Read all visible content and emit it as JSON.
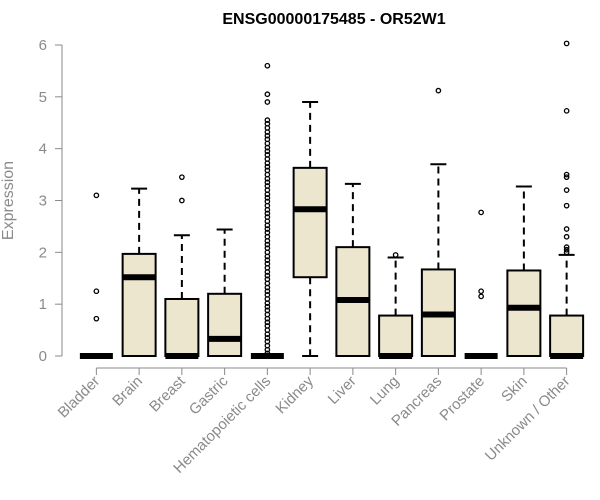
{
  "chart_data": {
    "type": "boxplot",
    "title": "ENSG00000175485 - OR52W1",
    "ylabel": "Expression",
    "xlabel": "",
    "ylim": [
      0,
      6
    ],
    "yticks": [
      "0",
      "1",
      "2",
      "3",
      "4",
      "5",
      "6"
    ],
    "box_fill": "#ede6cf",
    "categories": [
      "Bladder",
      "Brain",
      "Breast",
      "Gastric",
      "Hematopoietic cells",
      "Kidney",
      "Liver",
      "Lung",
      "Pancreas",
      "Prostate",
      "Skin",
      "Unknown / Other"
    ],
    "boxes": [
      {
        "q1": 0,
        "median": 0,
        "q3": 0,
        "wlo": 0,
        "whi": 0,
        "outliers": [
          0.72,
          1.25,
          3.1
        ]
      },
      {
        "q1": 0,
        "median": 1.52,
        "q3": 1.97,
        "wlo": 0,
        "whi": 3.23,
        "outliers": []
      },
      {
        "q1": 0,
        "median": 0,
        "q3": 1.1,
        "wlo": 0,
        "whi": 2.33,
        "outliers": [
          3.0,
          3.45
        ]
      },
      {
        "q1": 0,
        "median": 0.33,
        "q3": 1.2,
        "wlo": 0,
        "whi": 2.44,
        "outliers": []
      },
      {
        "q1": 0,
        "median": 0,
        "q3": 0,
        "wlo": 0,
        "whi": 0,
        "outliers": [
          0.05,
          0.12,
          0.2,
          0.28,
          0.35,
          0.42,
          0.5,
          0.58,
          0.65,
          0.72,
          0.8,
          0.88,
          0.95,
          1.02,
          1.1,
          1.18,
          1.25,
          1.32,
          1.4,
          1.48,
          1.55,
          1.62,
          1.7,
          1.78,
          1.85,
          1.92,
          2.0,
          2.08,
          2.15,
          2.22,
          2.3,
          2.38,
          2.45,
          2.52,
          2.6,
          2.68,
          2.75,
          2.82,
          2.9,
          2.98,
          3.05,
          3.12,
          3.2,
          3.28,
          3.35,
          3.42,
          3.5,
          3.58,
          3.65,
          3.72,
          3.8,
          3.88,
          3.95,
          4.02,
          4.1,
          4.18,
          4.25,
          4.32,
          4.4,
          4.48,
          4.55,
          4.9,
          5.05,
          5.6
        ]
      },
      {
        "q1": 1.52,
        "median": 2.83,
        "q3": 3.63,
        "wlo": 0,
        "whi": 4.9,
        "outliers": []
      },
      {
        "q1": 0,
        "median": 1.08,
        "q3": 2.1,
        "wlo": 0,
        "whi": 3.32,
        "outliers": []
      },
      {
        "q1": 0,
        "median": 0,
        "q3": 0.78,
        "wlo": 0,
        "whi": 1.9,
        "outliers": [
          1.95
        ]
      },
      {
        "q1": 0,
        "median": 0.8,
        "q3": 1.67,
        "wlo": 0,
        "whi": 3.7,
        "outliers": [
          5.12
        ]
      },
      {
        "q1": 0,
        "median": 0,
        "q3": 0,
        "wlo": 0,
        "whi": 0,
        "outliers": [
          1.15,
          1.25,
          2.77
        ]
      },
      {
        "q1": 0,
        "median": 0.93,
        "q3": 1.65,
        "wlo": 0,
        "whi": 3.27,
        "outliers": []
      },
      {
        "q1": 0,
        "median": 0,
        "q3": 0.78,
        "wlo": 0,
        "whi": 1.95,
        "outliers": [
          2.0,
          2.05,
          2.1,
          2.3,
          2.45,
          2.9,
          3.2,
          3.45,
          3.5,
          4.73,
          6.03
        ]
      }
    ]
  }
}
